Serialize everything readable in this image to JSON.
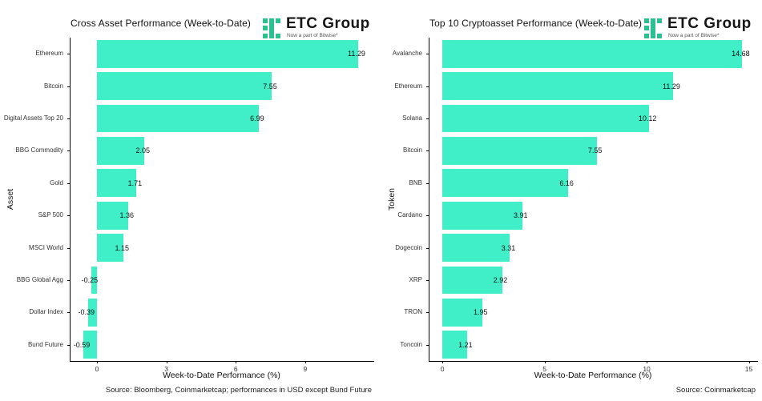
{
  "page": {
    "background": "#ffffff",
    "axis_color": "#000000",
    "text_color": "#111111"
  },
  "logo": {
    "name": "ETC Group",
    "tagline": "Now a part of Bitwise*",
    "icon": "etc-group-squares-icon",
    "icon_color": "#2BC08F"
  },
  "chart_data": [
    {
      "type": "bar",
      "orientation": "horizontal",
      "title": "Cross Asset Performance (Week-to-Date)",
      "xlabel": "Week-to-Date Performance (%)",
      "ylabel": "Asset",
      "source": "Source: Bloomberg, Coinmarketcap; performances in USD except Bund Future",
      "categories": [
        "Ethereum",
        "Bitcoin",
        "Digital Assets Top 20",
        "BBG Commodity",
        "Gold",
        "S&P 500",
        "MSCI World",
        "BBG Global Agg",
        "Dollar Index",
        "Bund Future"
      ],
      "values": [
        11.29,
        7.55,
        6.99,
        2.05,
        1.71,
        1.36,
        1.15,
        -0.25,
        -0.39,
        -0.59
      ],
      "x_ticks": [
        0,
        3,
        6,
        9
      ],
      "xlim": [
        -1.18,
        11.95
      ],
      "bar_color": "#40EFC8",
      "grid": false,
      "legend": null
    },
    {
      "type": "bar",
      "orientation": "horizontal",
      "title": "Top 10 Cryptoasset Performance (Week-to-Date)",
      "xlabel": "Week-to-Date Performance (%)",
      "ylabel": "Token",
      "source": "Source: Coinmarketcap",
      "categories": [
        "Avalanche",
        "Ethereum",
        "Solana",
        "Bitcoin",
        "BNB",
        "Cardano",
        "Dogecoin",
        "XRP",
        "TRON",
        "Toncoin"
      ],
      "values": [
        14.68,
        11.29,
        10.12,
        7.55,
        6.16,
        3.91,
        3.31,
        2.92,
        1.95,
        1.21
      ],
      "x_ticks": [
        0,
        5,
        10,
        15
      ],
      "xlim": [
        -0.67,
        15.41
      ],
      "bar_color": "#40EFC8",
      "grid": false,
      "legend": null
    }
  ]
}
